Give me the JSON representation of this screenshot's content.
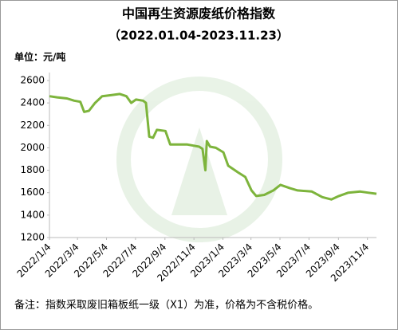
{
  "chart_data": {
    "type": "line",
    "title": "中国再生资源废纸价格指数",
    "subtitle": "（2022.01.04-2023.11.23）",
    "unit_label": "单位：元/吨",
    "note": "备注：指数采取废旧箱板纸一级（X1）为准，价格为不含税价格。",
    "color": "#7db43c",
    "x": [
      "2022-01-04",
      "2022-01-20",
      "2022-02-10",
      "2022-02-25",
      "2022-03-10",
      "2022-03-18",
      "2022-03-28",
      "2022-04-10",
      "2022-04-25",
      "2022-05-15",
      "2022-06-01",
      "2022-06-15",
      "2022-06-25",
      "2022-07-05",
      "2022-07-20",
      "2022-07-26",
      "2022-08-02",
      "2022-08-10",
      "2022-08-18",
      "2022-09-05",
      "2022-09-15",
      "2022-10-20",
      "2022-11-15",
      "2022-11-22",
      "2022-11-28",
      "2022-12-01",
      "2022-12-08",
      "2022-12-20",
      "2023-01-05",
      "2023-01-15",
      "2023-02-05",
      "2023-02-20",
      "2023-03-05",
      "2023-03-15",
      "2023-04-01",
      "2023-04-20",
      "2023-05-05",
      "2023-05-25",
      "2023-06-10",
      "2023-07-10",
      "2023-08-01",
      "2023-08-20",
      "2023-09-05",
      "2023-09-25",
      "2023-10-20",
      "2023-11-05",
      "2023-11-23"
    ],
    "values": [
      2460,
      2450,
      2440,
      2420,
      2410,
      2320,
      2330,
      2400,
      2460,
      2470,
      2480,
      2460,
      2400,
      2430,
      2420,
      2400,
      2100,
      2090,
      2160,
      2150,
      2030,
      2030,
      2010,
      1990,
      1800,
      2060,
      2010,
      2000,
      1960,
      1840,
      1780,
      1740,
      1620,
      1570,
      1580,
      1620,
      1670,
      1640,
      1620,
      1610,
      1560,
      1540,
      1570,
      1600,
      1610,
      1600,
      1590
    ],
    "xlim": [
      "2022-01-04",
      "2023-11-23"
    ],
    "xticks": [
      {
        "value": "2022-01-04",
        "label": "2022/1/4"
      },
      {
        "value": "2022-03-04",
        "label": "2022/3/4"
      },
      {
        "value": "2022-05-04",
        "label": "2022/5/4"
      },
      {
        "value": "2022-07-04",
        "label": "2022/7/4"
      },
      {
        "value": "2022-09-04",
        "label": "2022/9/4"
      },
      {
        "value": "2022-11-04",
        "label": "2022/11/4"
      },
      {
        "value": "2023-01-04",
        "label": "2023/1/4"
      },
      {
        "value": "2023-03-04",
        "label": "2023/3/4"
      },
      {
        "value": "2023-05-04",
        "label": "2023/5/4"
      },
      {
        "value": "2023-07-04",
        "label": "2023/7/4"
      },
      {
        "value": "2023-09-04",
        "label": "2023/9/4"
      },
      {
        "value": "2023-11-04",
        "label": "2023/11/4"
      }
    ],
    "ylim": [
      1200,
      2600
    ],
    "yticks": [
      1200,
      1400,
      1600,
      1800,
      2000,
      2200,
      2400,
      2600
    ],
    "grid": false
  }
}
